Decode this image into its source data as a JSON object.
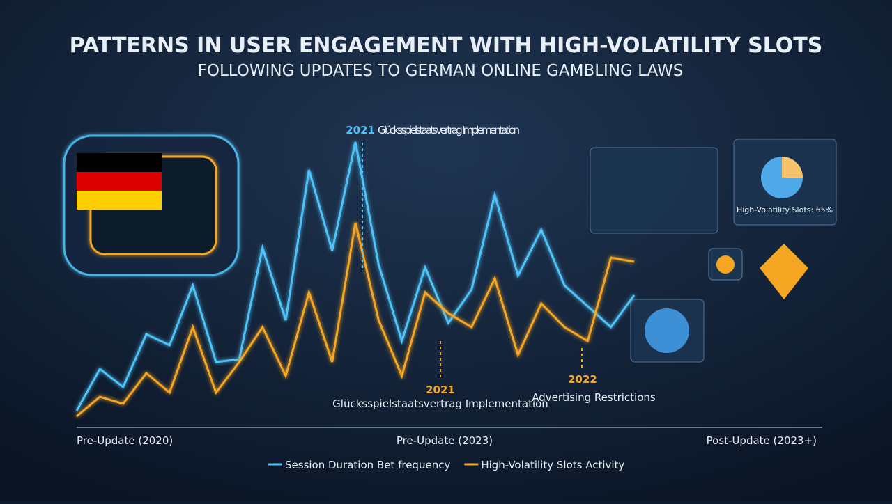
{
  "chart_data": {
    "type": "line",
    "title": "PATTERNS IN USER ENGAGEMENT WITH HIGH-VOLATILITY SLOTS",
    "subtitle": "FOLLOWING UPDATES TO GERMAN ONLINE GAMBLING LAWS",
    "categories": [
      "Pre-Update (2020)",
      null,
      null,
      null,
      null,
      null,
      null,
      null,
      null,
      null,
      null,
      null,
      "Pre-Update (2023)",
      null,
      null,
      null,
      null,
      null,
      null,
      null,
      null,
      null,
      null,
      null,
      "Post-Update (2023+)"
    ],
    "series": [
      {
        "name": "Session Duration Bet frequency",
        "color": "#4fc3f7",
        "values": [
          2.5,
          17.5,
          11,
          30,
          26,
          47.5,
          20,
          21,
          61,
          35,
          89,
          60,
          99,
          55,
          27.5,
          54,
          34,
          46,
          80,
          51,
          67.5,
          47.5,
          40,
          32.5,
          44
        ]
      },
      {
        "name": "High-Volatility Slots Activity",
        "color": "#f5a623",
        "values": [
          0.5,
          7.5,
          5,
          16,
          9,
          32.5,
          9,
          20,
          32.5,
          15,
          45,
          20,
          70,
          35,
          15,
          45,
          37.5,
          32.5,
          50,
          22.5,
          41,
          32.5,
          27.5,
          57.5,
          56
        ]
      }
    ],
    "annotations": [
      {
        "year": "2021",
        "text": "Glücksspielstaatsvertrag Implementation"
      },
      {
        "year": "2021",
        "text": "Glücksspielstaatsvertrag Implementation"
      },
      {
        "year": "2022",
        "text": "Advertising Restrictions"
      }
    ],
    "panel_label": "High-Volatility Slots: 65%"
  }
}
